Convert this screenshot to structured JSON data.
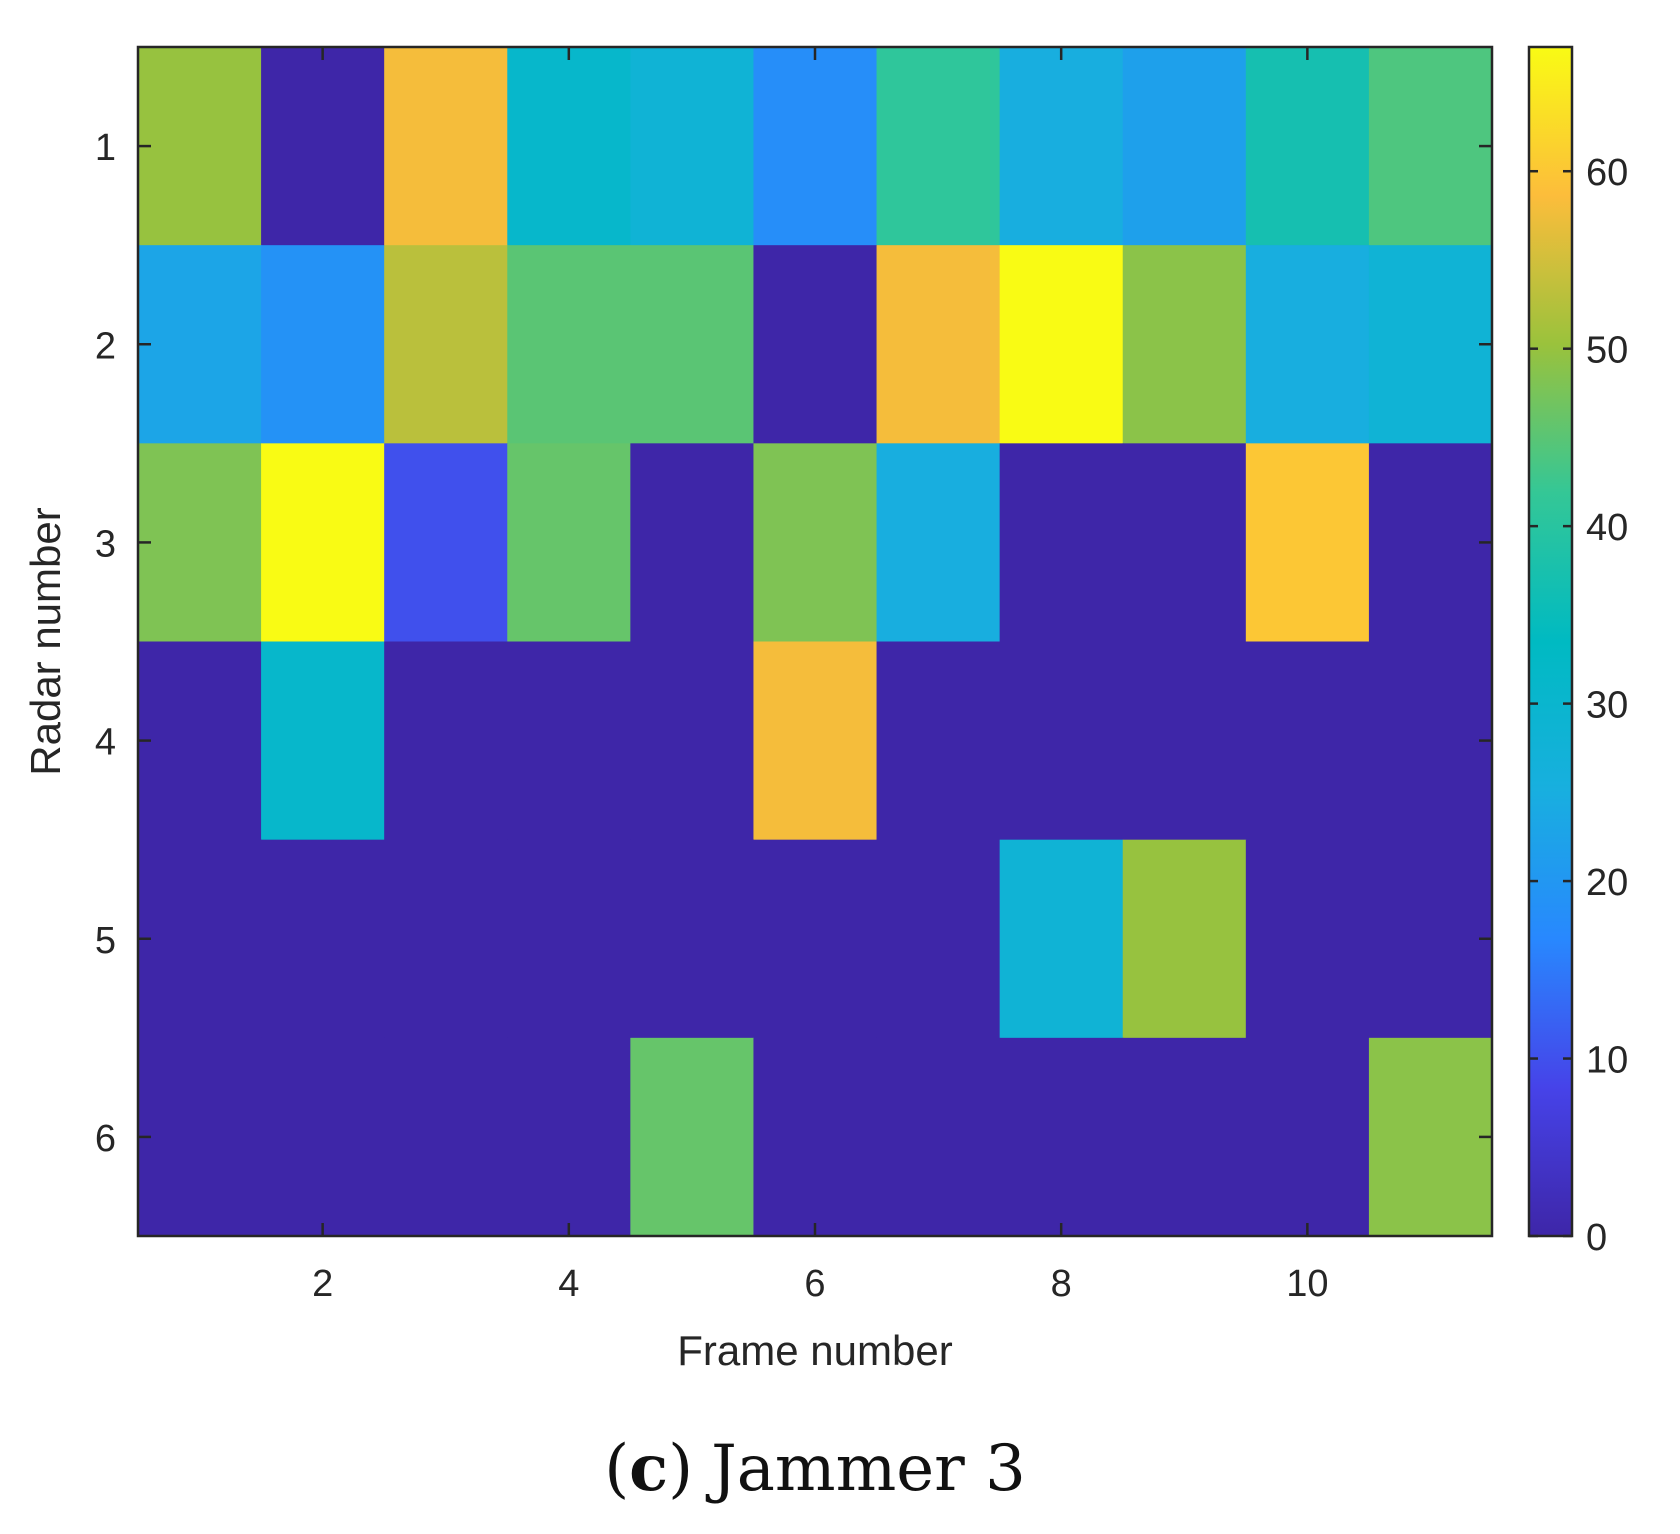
{
  "caption": {
    "open_paren": "(",
    "letter": "c",
    "close_paren": ")",
    "text": "Jammer 3"
  },
  "chart_data": {
    "type": "heatmap",
    "xlabel": "Frame number",
    "ylabel": "Radar number",
    "x": [
      1,
      2,
      3,
      4,
      5,
      6,
      7,
      8,
      9,
      10,
      11
    ],
    "y": [
      1,
      2,
      3,
      4,
      5,
      6
    ],
    "xticks": [
      2,
      4,
      6,
      8,
      10
    ],
    "yticks": [
      1,
      2,
      3,
      4,
      5,
      6
    ],
    "xlim": [
      0.5,
      11.5
    ],
    "ylim": [
      0.5,
      6.5
    ],
    "y_direction": "top-to-bottom",
    "values": [
      [
        50,
        0,
        58,
        31,
        28,
        18,
        41,
        25,
        22,
        37,
        44
      ],
      [
        23,
        19,
        53,
        45,
        45,
        0,
        58,
        67,
        49,
        25,
        28
      ],
      [
        48,
        67,
        10,
        46,
        0,
        48,
        25,
        0,
        0,
        60,
        0
      ],
      [
        0,
        31,
        0,
        0,
        0,
        58,
        0,
        0,
        0,
        0,
        0
      ],
      [
        0,
        0,
        0,
        0,
        0,
        0,
        0,
        28,
        50,
        0,
        0
      ],
      [
        0,
        0,
        0,
        0,
        46,
        0,
        0,
        0,
        0,
        0,
        49
      ]
    ],
    "colorbar": {
      "min": 0,
      "max": 67,
      "ticks": [
        0,
        10,
        20,
        30,
        40,
        50,
        60
      ],
      "colormap": "parula"
    },
    "grid": false,
    "legend": "none"
  },
  "colors": {
    "axis": "#262626",
    "background": "#ffffff"
  }
}
